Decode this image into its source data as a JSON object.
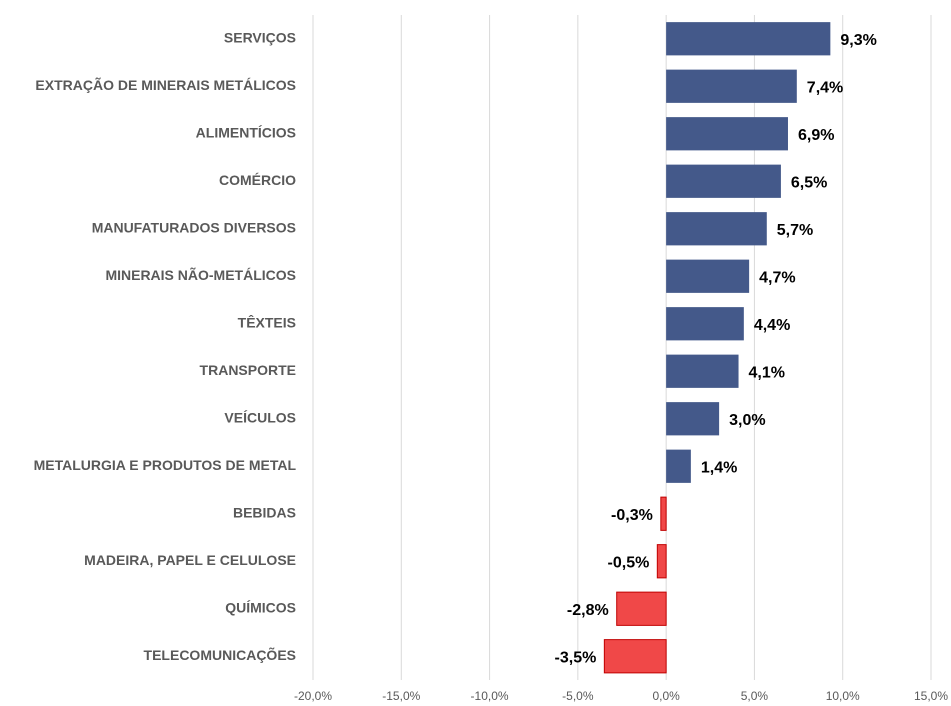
{
  "chart_data": {
    "type": "hbar",
    "categories": [
      "SERVIÇOS",
      "EXTRAÇÃO DE MINERAIS METÁLICOS",
      "ALIMENTÍCIOS",
      "COMÉRCIO",
      "MANUFATURADOS DIVERSOS",
      "MINERAIS NÃO-METÁLICOS",
      "TÊXTEIS",
      "TRANSPORTE",
      "VEÍCULOS",
      "METALURGIA E PRODUTOS DE METAL",
      "BEBIDAS",
      "MADEIRA, PAPEL E CELULOSE",
      "QUÍMICOS",
      "TELECOMUNICAÇÕES"
    ],
    "values": [
      9.3,
      7.4,
      6.9,
      6.5,
      5.7,
      4.7,
      4.4,
      4.1,
      3.0,
      1.4,
      -0.3,
      -0.5,
      -2.8,
      -3.5
    ],
    "value_labels": [
      "9,3%",
      "7,4%",
      "6,9%",
      "6,5%",
      "5,7%",
      "4,7%",
      "4,4%",
      "4,1%",
      "3,0%",
      "1,4%",
      "-0,3%",
      "-0,5%",
      "-2,8%",
      "-3,5%"
    ],
    "color": "#44598a",
    "negative_color": "#f04848",
    "xlim": [
      -20,
      15
    ],
    "xticks": [
      {
        "value": -20,
        "label": "-20,0%"
      },
      {
        "value": -15,
        "label": "-15,0%"
      },
      {
        "value": -10,
        "label": "-10,0%"
      },
      {
        "value": -5,
        "label": "-5,0%"
      },
      {
        "value": 0,
        "label": "0,0%"
      },
      {
        "value": 5,
        "label": "5,0%"
      },
      {
        "value": 10,
        "label": "10,0%"
      },
      {
        "value": 15,
        "label": "15,0%"
      }
    ],
    "grid": true
  }
}
